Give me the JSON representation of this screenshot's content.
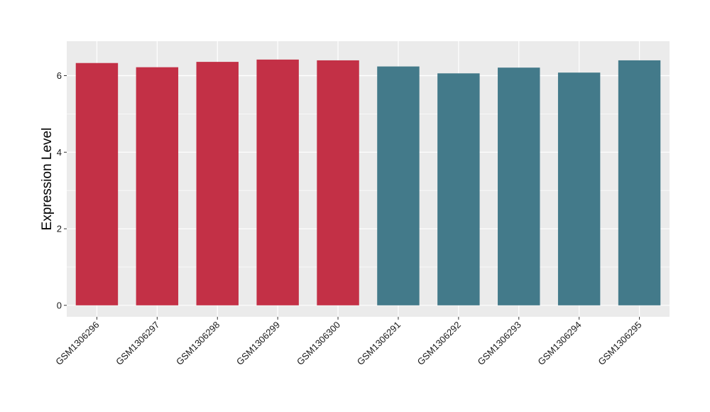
{
  "chart_data": {
    "type": "bar",
    "title": "",
    "xlabel": "",
    "ylabel": "Expression Level",
    "ylim": [
      -0.3,
      6.9
    ],
    "yticks": [
      0,
      2,
      4,
      6
    ],
    "grid": true,
    "background": "#EBEBEB",
    "gridline_color": "#FFFFFF",
    "categories": [
      "GSM1306296",
      "GSM1306297",
      "GSM1306298",
      "GSM1306299",
      "GSM1306300",
      "GSM1306291",
      "GSM1306292",
      "GSM1306293",
      "GSM1306294",
      "GSM1306295"
    ],
    "values": [
      6.33,
      6.22,
      6.36,
      6.42,
      6.4,
      6.24,
      6.06,
      6.21,
      6.08,
      6.4
    ],
    "bar_colors": [
      "#C33046",
      "#C33046",
      "#C33046",
      "#C33046",
      "#C33046",
      "#437A8A",
      "#437A8A",
      "#437A8A",
      "#437A8A",
      "#437A8A"
    ]
  }
}
